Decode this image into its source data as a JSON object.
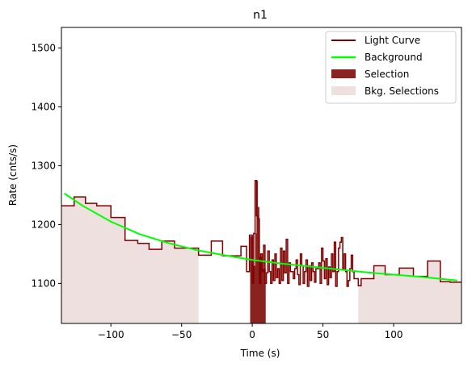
{
  "chart_data": {
    "type": "line",
    "title": "n1",
    "xlabel": "Time (s)",
    "ylabel": "Rate (cnts/s)",
    "xlim": [
      -135,
      148
    ],
    "ylim": [
      1032,
      1535
    ],
    "xticks": [
      -100,
      -50,
      0,
      50,
      100
    ],
    "yticks": [
      1100,
      1200,
      1300,
      1400,
      1500
    ],
    "xtick_labels": [
      "−100",
      "−50",
      "0",
      "50",
      "100"
    ],
    "ytick_labels": [
      "1100",
      "1200",
      "1300",
      "1400",
      "1500"
    ],
    "legend_position": "upper right",
    "legend": [
      {
        "label": "Light Curve",
        "kind": "line",
        "color": "#800000"
      },
      {
        "label": "Background",
        "kind": "line",
        "color": "#00ff00"
      },
      {
        "label": "Selection",
        "kind": "patch",
        "color": "#8b2222"
      },
      {
        "label": "Bkg. Selections",
        "kind": "patch",
        "color": "#efe0e0"
      }
    ],
    "bkg_selections": [
      [
        -135,
        -38
      ],
      [
        75,
        148
      ]
    ],
    "selection": [
      -1.5,
      9.5
    ],
    "selection_profile": [
      [
        -1.5,
        1180
      ],
      [
        0.5,
        1130
      ],
      [
        2,
        1185
      ],
      [
        3,
        1275
      ],
      [
        4,
        1230
      ],
      [
        5,
        1145
      ],
      [
        7,
        1125
      ],
      [
        9.5,
        1125
      ]
    ],
    "light_curve_steps": [
      [
        -135,
        1232
      ],
      [
        -126,
        1247
      ],
      [
        -118,
        1236
      ],
      [
        -110,
        1232
      ],
      [
        -100,
        1212
      ],
      [
        -90,
        1173
      ],
      [
        -81,
        1168
      ],
      [
        -73,
        1158
      ],
      [
        -64,
        1172
      ],
      [
        -55,
        1160
      ],
      [
        -46,
        1160
      ],
      [
        -38,
        1148
      ],
      [
        -29,
        1172
      ],
      [
        -21,
        1147
      ],
      [
        -12,
        1147
      ],
      [
        -8,
        1163
      ],
      [
        -4,
        1120
      ],
      [
        -2,
        1182
      ],
      [
        0,
        1100
      ],
      [
        1,
        1185
      ],
      [
        2,
        1275
      ],
      [
        3,
        1215
      ],
      [
        4,
        1210
      ],
      [
        5,
        1100
      ],
      [
        6,
        1150
      ],
      [
        7,
        1120
      ],
      [
        8,
        1165
      ],
      [
        9,
        1100
      ],
      [
        10,
        1118
      ],
      [
        11,
        1155
      ],
      [
        12,
        1120
      ],
      [
        13,
        1100
      ],
      [
        14,
        1140
      ],
      [
        15,
        1105
      ],
      [
        16,
        1150
      ],
      [
        17,
        1110
      ],
      [
        18,
        1125
      ],
      [
        19,
        1100
      ],
      [
        20,
        1160
      ],
      [
        21,
        1105
      ],
      [
        22,
        1155
      ],
      [
        23,
        1118
      ],
      [
        24,
        1175
      ],
      [
        25,
        1100
      ],
      [
        26,
        1135
      ],
      [
        27,
        1120
      ],
      [
        28,
        1120
      ],
      [
        29,
        1108
      ],
      [
        30,
        1125
      ],
      [
        31,
        1140
      ],
      [
        32,
        1115
      ],
      [
        33,
        1098
      ],
      [
        34,
        1150
      ],
      [
        35,
        1130
      ],
      [
        36,
        1100
      ],
      [
        37,
        1120
      ],
      [
        38,
        1140
      ],
      [
        39,
        1095
      ],
      [
        40,
        1130
      ],
      [
        41,
        1105
      ],
      [
        42,
        1135
      ],
      [
        43,
        1120
      ],
      [
        44,
        1102
      ],
      [
        45,
        1125
      ],
      [
        46,
        1125
      ],
      [
        47,
        1135
      ],
      [
        48,
        1100
      ],
      [
        49,
        1160
      ],
      [
        50,
        1138
      ],
      [
        51,
        1108
      ],
      [
        52,
        1142
      ],
      [
        53,
        1098
      ],
      [
        54,
        1128
      ],
      [
        55,
        1110
      ],
      [
        56,
        1150
      ],
      [
        57,
        1120
      ],
      [
        58,
        1170
      ],
      [
        59,
        1095
      ],
      [
        60,
        1120
      ],
      [
        61,
        1160
      ],
      [
        62,
        1170
      ],
      [
        63,
        1178
      ],
      [
        64,
        1125
      ],
      [
        65,
        1150
      ],
      [
        66,
        1120
      ],
      [
        67,
        1095
      ],
      [
        68,
        1105
      ],
      [
        69,
        1125
      ],
      [
        70,
        1148
      ],
      [
        71,
        1120
      ],
      [
        72,
        1108
      ],
      [
        73,
        1108
      ],
      [
        75,
        1096
      ],
      [
        77,
        1108
      ],
      [
        85,
        1108
      ],
      [
        86,
        1130
      ],
      [
        94,
        1115
      ],
      [
        104,
        1126
      ],
      [
        114,
        1112
      ],
      [
        124,
        1138
      ],
      [
        133,
        1103
      ],
      [
        140,
        1102
      ],
      [
        148,
        1102
      ]
    ],
    "background_curve": {
      "x": [
        -133,
        -120,
        -100,
        -80,
        -60,
        -40,
        -20,
        0,
        20,
        40,
        60,
        80,
        100,
        120,
        145
      ],
      "y": [
        1253,
        1232,
        1205,
        1184,
        1169,
        1157,
        1148,
        1140,
        1134,
        1129,
        1124,
        1119,
        1115,
        1111,
        1105
      ]
    }
  }
}
